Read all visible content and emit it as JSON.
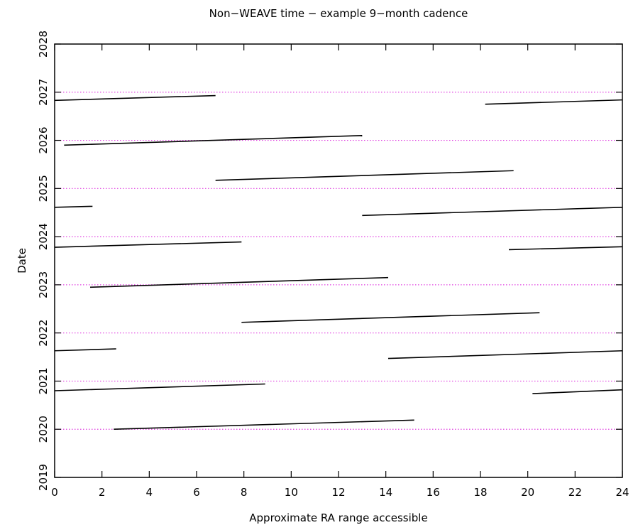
{
  "chart_data": {
    "type": "line",
    "title": "Non−WEAVE time − example 9−month cadence",
    "xlabel": "Approximate RA range accessible",
    "ylabel": "Date",
    "xlim": [
      0,
      24
    ],
    "ylim": [
      2019,
      2028
    ],
    "x_ticks": [
      0,
      2,
      4,
      6,
      8,
      10,
      12,
      14,
      16,
      18,
      20,
      22,
      24
    ],
    "x_tick_labels": [
      "0",
      "2",
      "4",
      "6",
      "8",
      "10",
      "12",
      "14",
      "16",
      "18",
      "20",
      "22",
      "24"
    ],
    "y_ticks": [
      2019,
      2020,
      2021,
      2022,
      2023,
      2024,
      2025,
      2026,
      2027,
      2028
    ],
    "y_tick_labels": [
      "2019",
      "2020",
      "2021",
      "2022",
      "2023",
      "2024",
      "2025",
      "2026",
      "2027",
      "2028"
    ],
    "reference_lines": {
      "color": "#e040e0",
      "style": "dotted",
      "y": [
        2020,
        2021,
        2022,
        2023,
        2024,
        2025,
        2026,
        2027
      ]
    },
    "line_color": "#000000",
    "series": [
      {
        "x": [
          2.5,
          15.2
        ],
        "y": [
          2020.0,
          2020.19
        ]
      },
      {
        "x": [
          0.0,
          8.9
        ],
        "y": [
          2020.8,
          2020.94
        ]
      },
      {
        "x": [
          20.2,
          24.0
        ],
        "y": [
          2020.74,
          2020.82
        ]
      },
      {
        "x": [
          0.0,
          2.6
        ],
        "y": [
          2021.63,
          2021.67
        ]
      },
      {
        "x": [
          14.1,
          24.0
        ],
        "y": [
          2021.47,
          2021.63
        ]
      },
      {
        "x": [
          7.9,
          20.5
        ],
        "y": [
          2022.22,
          2022.42
        ]
      },
      {
        "x": [
          1.5,
          14.1
        ],
        "y": [
          2022.95,
          2023.15
        ]
      },
      {
        "x": [
          0.0,
          7.9
        ],
        "y": [
          2023.78,
          2023.89
        ]
      },
      {
        "x": [
          19.2,
          24.0
        ],
        "y": [
          2023.73,
          2023.79
        ]
      },
      {
        "x": [
          0.0,
          1.6
        ],
        "y": [
          2024.61,
          2024.63
        ]
      },
      {
        "x": [
          13.0,
          24.0
        ],
        "y": [
          2024.44,
          2024.61
        ]
      },
      {
        "x": [
          6.8,
          19.4
        ],
        "y": [
          2025.17,
          2025.37
        ]
      },
      {
        "x": [
          0.4,
          13.0
        ],
        "y": [
          2025.9,
          2026.1
        ]
      },
      {
        "x": [
          0.0,
          6.8
        ],
        "y": [
          2026.83,
          2026.93
        ]
      },
      {
        "x": [
          18.2,
          24.0
        ],
        "y": [
          2026.75,
          2026.84
        ]
      }
    ]
  }
}
